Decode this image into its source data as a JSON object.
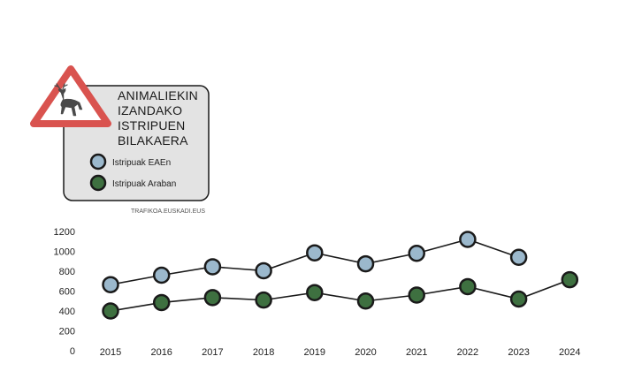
{
  "chart_data": {
    "type": "line",
    "title": [
      "ANIMALIEKIN",
      "IZANDAKO",
      "ISTRIPUEN",
      "BILAKAERA"
    ],
    "source": "TRAFIKOA.EUSKADI.EUS",
    "x": [
      "2015",
      "2016",
      "2017",
      "2018",
      "2019",
      "2020",
      "2021",
      "2022",
      "2023",
      "2024"
    ],
    "ylim": [
      0,
      1200
    ],
    "yticks": [
      "0",
      "200",
      "400",
      "600",
      "800",
      "1000",
      "1200"
    ],
    "grid": false,
    "legend_position": "top-left",
    "series": [
      {
        "name": "Istripuak EAEn",
        "color": "#9bb8cc",
        "values": [
          665,
          760,
          845,
          805,
          985,
          875,
          980,
          1120,
          940,
          null
        ]
      },
      {
        "name": "Istripuak Araban",
        "color": "#3e7040",
        "values": [
          400,
          485,
          535,
          510,
          585,
          500,
          560,
          645,
          520,
          715
        ]
      }
    ],
    "icon": "deer-warning-sign-icon",
    "colors": {
      "sign_border": "#d9534f",
      "box_fill": "#e3e3e3",
      "line": "#1a1a1a"
    }
  }
}
